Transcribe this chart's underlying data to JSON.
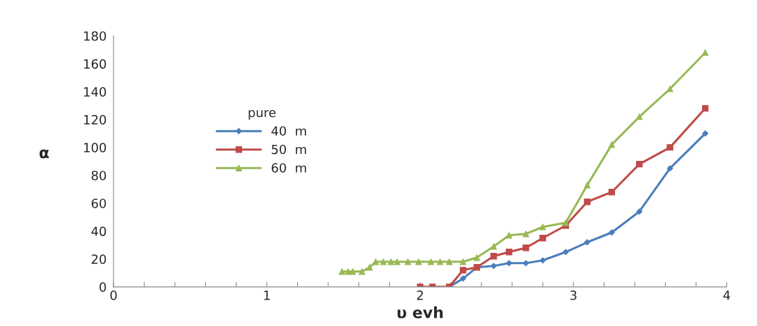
{
  "chart_data": {
    "type": "line",
    "xlabel": "υ evh",
    "ylabel": "α",
    "legend_title": "pure",
    "legend": "left",
    "grid": false,
    "xlim": [
      0,
      4
    ],
    "ylim": [
      0,
      180
    ],
    "xticks": [
      0,
      {
        "value": 0.2,
        "label": null
      },
      {
        "value": 0.4,
        "label": null
      },
      {
        "value": 0.6,
        "label": null
      },
      {
        "value": 0.8,
        "label": null
      },
      1,
      {
        "value": 1.2,
        "label": null
      },
      {
        "value": 1.4,
        "label": null
      },
      {
        "value": 1.6,
        "label": null
      },
      {
        "value": 1.8,
        "label": null
      },
      2,
      {
        "value": 2.2,
        "label": null
      },
      {
        "value": 2.4,
        "label": null
      },
      {
        "value": 2.6,
        "label": null
      },
      {
        "value": 2.8,
        "label": null
      },
      3,
      {
        "value": 3.2,
        "label": null
      },
      {
        "value": 3.4,
        "label": null
      },
      {
        "value": 3.6,
        "label": null
      },
      {
        "value": 3.8,
        "label": null
      },
      4
    ],
    "yticks": [
      0,
      20,
      40,
      60,
      80,
      100,
      120,
      140,
      160,
      180
    ],
    "series": [
      {
        "name": "40  m",
        "color": "#4a7ebb",
        "marker": "diamond",
        "x": [
          2.19,
          2.28,
          2.37,
          2.48,
          2.58,
          2.69,
          2.8,
          2.95,
          3.09,
          3.25,
          3.43,
          3.63,
          3.86
        ],
        "values": [
          0,
          6,
          14,
          15,
          17,
          17,
          19,
          25,
          32,
          39,
          54,
          85,
          110
        ]
      },
      {
        "name": "50  m",
        "color": "#be4b48",
        "marker": "square",
        "x": [
          2.0,
          2.08,
          2.19,
          2.28,
          2.37,
          2.48,
          2.58,
          2.69,
          2.8,
          2.95,
          3.09,
          3.25,
          3.43,
          3.63,
          3.86
        ],
        "values": [
          0,
          0,
          0,
          12,
          14,
          22,
          25,
          28,
          35,
          44,
          61,
          68,
          88,
          100,
          128
        ]
      },
      {
        "name": "60  m",
        "color": "#98b954",
        "marker": "triangle",
        "x": [
          1.49,
          1.53,
          1.56,
          1.62,
          1.67,
          1.71,
          1.76,
          1.81,
          1.85,
          1.92,
          1.99,
          2.07,
          2.13,
          2.19,
          2.28,
          2.37,
          2.48,
          2.58,
          2.69,
          2.8,
          2.95,
          3.09,
          3.25,
          3.43,
          3.63,
          3.86
        ],
        "values": [
          11,
          11,
          11,
          11,
          14,
          18,
          18,
          18,
          18,
          18,
          18,
          18,
          18,
          18,
          18,
          21,
          29,
          37,
          38,
          43,
          46,
          73,
          102,
          122,
          142,
          168
        ]
      }
    ]
  }
}
